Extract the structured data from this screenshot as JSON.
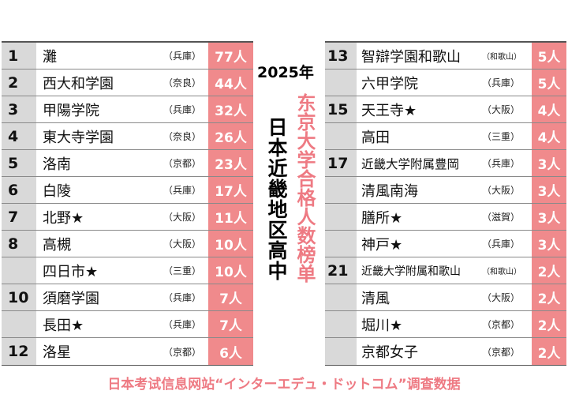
{
  "year_label": "2025年",
  "title_black": "日本近畿地区高中",
  "title_pink": "东京大学合格人数榜单",
  "footer": "日本考试信息网站“インターエデュ・ドットコム”调查数据",
  "colors": {
    "count_bg": "#f08a8c",
    "rank_bg": "#d9d9d9",
    "accent": "#ee7a83"
  },
  "left_rows": [
    {
      "rank": "1",
      "name": "灘",
      "pref": "（兵庫）",
      "count": "77人"
    },
    {
      "rank": "2",
      "name": "西大和学園",
      "pref": "（奈良）",
      "count": "44人"
    },
    {
      "rank": "3",
      "name": "甲陽学院",
      "pref": "（兵庫）",
      "count": "32人"
    },
    {
      "rank": "4",
      "name": "東大寺学園",
      "pref": "（奈良）",
      "count": "26人"
    },
    {
      "rank": "5",
      "name": "洛南",
      "pref": "（京都）",
      "count": "23人"
    },
    {
      "rank": "6",
      "name": "白陵",
      "pref": "（兵庫）",
      "count": "17人"
    },
    {
      "rank": "7",
      "name": "北野★",
      "pref": "（大阪）",
      "count": "11人"
    },
    {
      "rank": "8",
      "name": "高槻",
      "pref": "（大阪）",
      "count": "10人"
    },
    {
      "rank": "",
      "name": "四日市★",
      "pref": "（三重）",
      "count": "10人"
    },
    {
      "rank": "10",
      "name": "須磨学園",
      "pref": "（兵庫）",
      "count": "7人"
    },
    {
      "rank": "",
      "name": "長田★",
      "pref": "（兵庫）",
      "count": "7人"
    },
    {
      "rank": "12",
      "name": "洛星",
      "pref": "（京都）",
      "count": "6人"
    }
  ],
  "right_rows": [
    {
      "rank": "13",
      "name": "智辯学園和歌山",
      "pref": "（和歌山）",
      "count": "5人"
    },
    {
      "rank": "",
      "name": "六甲学院",
      "pref": "（兵庫）",
      "count": "5人"
    },
    {
      "rank": "15",
      "name": "天王寺★",
      "pref": "（大阪）",
      "count": "4人"
    },
    {
      "rank": "",
      "name": "高田",
      "pref": "（三重）",
      "count": "4人"
    },
    {
      "rank": "17",
      "name": "近畿大学附属豊岡",
      "pref": "（兵庫）",
      "count": "3人"
    },
    {
      "rank": "",
      "name": "清風南海",
      "pref": "（大阪）",
      "count": "3人"
    },
    {
      "rank": "",
      "name": "膳所★",
      "pref": "（滋賀）",
      "count": "3人"
    },
    {
      "rank": "",
      "name": "神戸★",
      "pref": "（兵庫）",
      "count": "3人"
    },
    {
      "rank": "21",
      "name": "近畿大学附属和歌山",
      "pref": "（和歌山）",
      "count": "2人"
    },
    {
      "rank": "",
      "name": "清風",
      "pref": "（大阪）",
      "count": "2人"
    },
    {
      "rank": "",
      "name": "堀川★",
      "pref": "（京都）",
      "count": "2人"
    },
    {
      "rank": "",
      "name": "京都女子",
      "pref": "（京都）",
      "count": "2人"
    }
  ]
}
